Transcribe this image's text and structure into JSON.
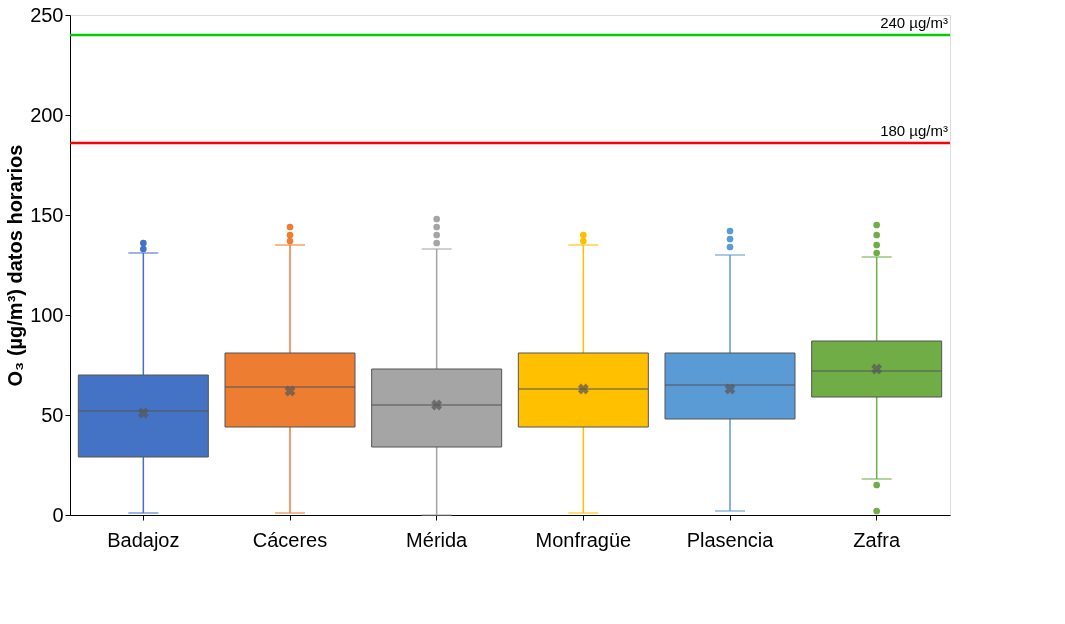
{
  "chart_data": {
    "type": "box",
    "ylabel": "O₃  (µg/m³) datos horarios",
    "categories": [
      "Badajoz",
      "Cáceres",
      "Mérida",
      "Monfragüe",
      "Plasencia",
      "Zafra"
    ],
    "colors": [
      "#4472c4",
      "#ed7d31",
      "#a5a5a5",
      "#ffc000",
      "#5b9bd5",
      "#70ad47"
    ],
    "boxes": [
      {
        "low": 1,
        "q1": 29,
        "median": 52,
        "q3": 70,
        "high": 131,
        "mean": 51,
        "outliers": [
          133,
          136
        ]
      },
      {
        "low": 1,
        "q1": 44,
        "median": 64,
        "q3": 81,
        "high": 135,
        "mean": 62,
        "outliers": [
          137,
          140,
          144
        ]
      },
      {
        "low": 0,
        "q1": 34,
        "median": 55,
        "q3": 73,
        "high": 133,
        "mean": 55,
        "outliers": [
          136,
          140,
          144,
          148
        ]
      },
      {
        "low": 1,
        "q1": 44,
        "median": 63,
        "q3": 81,
        "high": 135,
        "mean": 63,
        "outliers": [
          137,
          140
        ]
      },
      {
        "low": 2,
        "q1": 48,
        "median": 65,
        "q3": 81,
        "high": 130,
        "mean": 63,
        "outliers": [
          134,
          138,
          142
        ]
      },
      {
        "low": 18,
        "q1": 59,
        "median": 72,
        "q3": 87,
        "high": 129,
        "mean": 73,
        "outliers": [
          131,
          135,
          140,
          145,
          15,
          2
        ]
      }
    ],
    "ylim": [
      0,
      250
    ],
    "yticks": [
      0,
      50,
      100,
      150,
      200,
      250
    ],
    "ref_lines": [
      {
        "axis": "y",
        "value": 240,
        "label": "240 µg/m³",
        "color": "#00cc00"
      },
      {
        "axis": "y",
        "value": 186,
        "label": "180 µg/m³",
        "color": "#ff0000"
      }
    ],
    "grid": false
  }
}
